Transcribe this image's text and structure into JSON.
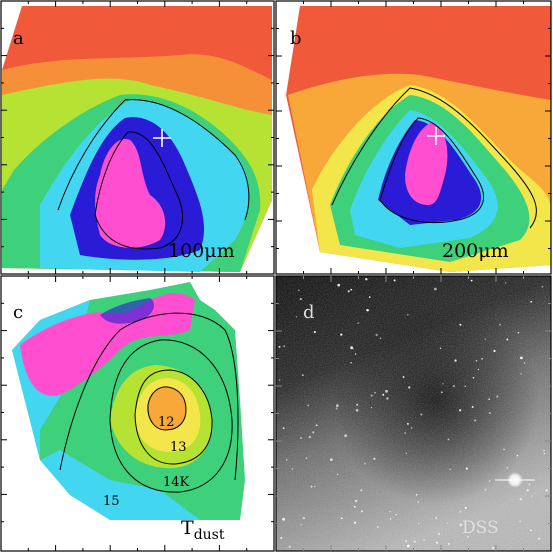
{
  "figure": {
    "panels": [
      {
        "letter": "a",
        "caption": "100μm",
        "has_marker": true
      },
      {
        "letter": "b",
        "caption": "200μm",
        "has_marker": true
      },
      {
        "letter": "c",
        "caption_main": "T",
        "caption_sub": "dust",
        "contour_labels": [
          "12",
          "13",
          "14K",
          "15"
        ]
      },
      {
        "letter": "d",
        "caption": "DSS"
      }
    ],
    "colormap": [
      "#2a1bd6",
      "#c21ae0",
      "#ff4fd0",
      "#1fb4ff",
      "#43d6f0",
      "#3ed07a",
      "#b6e234",
      "#f3e64a",
      "#f7a839",
      "#f0593a"
    ],
    "colors": {
      "frame": "#000000",
      "contour": "#000000",
      "sky_dark": "#0c0c0c",
      "sky_light": "#c8c8c8",
      "marker": "#ffffff"
    }
  }
}
